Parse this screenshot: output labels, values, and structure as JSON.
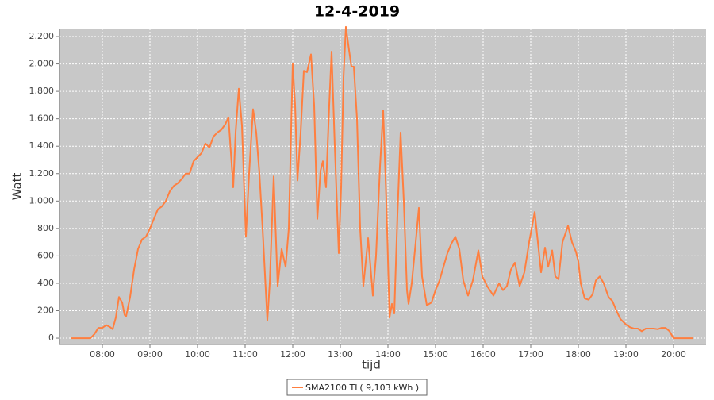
{
  "chart_data": {
    "type": "line",
    "title": "12-4-2019",
    "x_label": "tijd",
    "y_label": "Watt",
    "x": [
      "07:20",
      "07:45",
      "07:50",
      "07:55",
      "08:00",
      "08:05",
      "08:10",
      "08:13",
      "08:17",
      "08:21",
      "08:25",
      "08:28",
      "08:30",
      "08:35",
      "08:40",
      "08:45",
      "08:50",
      "08:55",
      "09:00",
      "09:05",
      "09:10",
      "09:15",
      "09:20",
      "09:25",
      "09:30",
      "09:35",
      "09:40",
      "09:45",
      "09:50",
      "09:55",
      "10:00",
      "10:05",
      "10:10",
      "10:15",
      "10:20",
      "10:25",
      "10:30",
      "10:35",
      "10:39",
      "10:45",
      "10:48",
      "10:52",
      "10:56",
      "11:01",
      "11:05",
      "11:10",
      "11:14",
      "11:18",
      "11:22",
      "11:26",
      "11:28",
      "11:31",
      "11:36",
      "11:41",
      "11:46",
      "11:51",
      "11:55",
      "12:00",
      "12:03",
      "12:06",
      "12:10",
      "12:14",
      "12:18",
      "12:23",
      "12:27",
      "12:31",
      "12:35",
      "12:38",
      "12:42",
      "12:46",
      "12:49",
      "12:53",
      "12:58",
      "13:01",
      "13:04",
      "13:07",
      "13:11",
      "13:14",
      "13:17",
      "13:21",
      "13:25",
      "13:29",
      "13:35",
      "13:41",
      "13:45",
      "13:50",
      "13:54",
      "13:58",
      "14:02",
      "14:05",
      "14:08",
      "14:12",
      "14:16",
      "14:20",
      "14:24",
      "14:26",
      "14:30",
      "14:35",
      "14:39",
      "14:43",
      "14:49",
      "14:55",
      "15:00",
      "15:05",
      "15:10",
      "15:15",
      "15:20",
      "15:25",
      "15:30",
      "15:35",
      "15:41",
      "15:47",
      "15:54",
      "15:59",
      "16:05",
      "16:13",
      "16:20",
      "16:25",
      "16:30",
      "16:35",
      "16:40",
      "16:46",
      "16:52",
      "16:58",
      "17:05",
      "17:09",
      "17:13",
      "17:18",
      "17:22",
      "17:27",
      "17:31",
      "17:35",
      "17:40",
      "17:47",
      "17:52",
      "17:57",
      "18:00",
      "18:03",
      "18:08",
      "18:13",
      "18:18",
      "18:22",
      "18:27",
      "18:32",
      "18:38",
      "18:43",
      "18:48",
      "18:53",
      "19:00",
      "19:05",
      "19:10",
      "19:15",
      "19:20",
      "19:25",
      "19:30",
      "19:35",
      "19:40",
      "19:45",
      "19:50",
      "19:55",
      "20:00",
      "20:25"
    ],
    "series": [
      {
        "name": "SMA2100 TL( 9,103 kWh )",
        "color": "#ff7f3f",
        "values": [
          0,
          0,
          30,
          75,
          75,
          95,
          80,
          65,
          150,
          300,
          260,
          170,
          160,
          300,
          500,
          650,
          720,
          740,
          800,
          870,
          940,
          960,
          1000,
          1070,
          1110,
          1130,
          1160,
          1200,
          1200,
          1290,
          1320,
          1350,
          1420,
          1390,
          1470,
          1500,
          1520,
          1560,
          1610,
          1100,
          1500,
          1820,
          1550,
          740,
          1200,
          1670,
          1500,
          1200,
          800,
          350,
          130,
          400,
          1180,
          380,
          650,
          520,
          800,
          2000,
          1700,
          1150,
          1500,
          1950,
          1940,
          2070,
          1700,
          870,
          1220,
          1290,
          1100,
          1700,
          2090,
          1400,
          620,
          1100,
          1900,
          2270,
          2100,
          1980,
          1980,
          1600,
          800,
          380,
          730,
          310,
          600,
          1250,
          1660,
          1000,
          150,
          250,
          180,
          900,
          1500,
          1000,
          350,
          250,
          400,
          700,
          950,
          450,
          240,
          260,
          350,
          420,
          520,
          620,
          690,
          740,
          650,
          420,
          310,
          420,
          640,
          450,
          380,
          310,
          400,
          350,
          380,
          500,
          550,
          380,
          480,
          700,
          920,
          700,
          480,
          660,
          520,
          640,
          450,
          430,
          700,
          820,
          700,
          630,
          560,
          400,
          290,
          280,
          320,
          420,
          450,
          400,
          300,
          270,
          200,
          140,
          100,
          80,
          70,
          70,
          50,
          70,
          70,
          70,
          65,
          75,
          75,
          50,
          0,
          0
        ]
      }
    ],
    "xlim": [
      "07:06",
      "20:41"
    ],
    "xticks": [
      "08:00",
      "09:00",
      "10:00",
      "11:00",
      "12:00",
      "13:00",
      "14:00",
      "15:00",
      "16:00",
      "17:00",
      "18:00",
      "19:00",
      "20:00"
    ],
    "ylim": [
      -46,
      2258
    ],
    "yticks": [
      0,
      200,
      400,
      600,
      800,
      {
        "value": 1000,
        "label": "1.000"
      },
      {
        "value": 1200,
        "label": "1.200"
      },
      {
        "value": 1400,
        "label": "1.400"
      },
      {
        "value": 1600,
        "label": "1.600"
      },
      {
        "value": 1800,
        "label": "1.800"
      },
      {
        "value": 2000,
        "label": "2.000"
      },
      {
        "value": 2200,
        "label": "2.200"
      }
    ],
    "grid": true,
    "legend": "bottom"
  }
}
